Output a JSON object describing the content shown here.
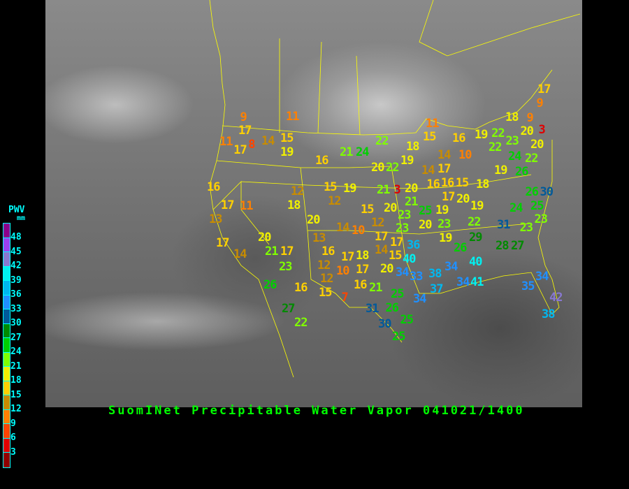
{
  "title": "SuomINet Precipitable Water Vapor 041021/1400",
  "legend": {
    "title": "PWV",
    "unit": "mm",
    "ticks": [
      "48",
      "45",
      "42",
      "39",
      "36",
      "33",
      "30",
      "27",
      "24",
      "21",
      "18",
      "15",
      "12",
      "9",
      "6",
      "3"
    ],
    "colors": [
      "#8b008b",
      "#9a40f0",
      "#8878d0",
      "#00f0f0",
      "#00b8f0",
      "#2090ff",
      "#005a9a",
      "#008a00",
      "#00d000",
      "#80ff00",
      "#f0f000",
      "#ffd000",
      "#c88c00",
      "#ff8000",
      "#ff4400",
      "#e00000",
      "#900000"
    ]
  },
  "stations": [
    "11",
    "9",
    "17",
    "11",
    "8",
    "17",
    "14",
    "15",
    "19",
    "16",
    "21",
    "24",
    "22",
    "18",
    "11",
    "15",
    "14",
    "16",
    "10",
    "19",
    "22",
    "18",
    "20",
    "9",
    "9",
    "17",
    "3",
    "22",
    "23",
    "20",
    "24",
    "22",
    "19",
    "26",
    "20",
    "22",
    "19",
    "14",
    "16",
    "16",
    "17",
    "21",
    "3",
    "20",
    "15",
    "17",
    "20",
    "18",
    "19",
    "16",
    "17",
    "11",
    "13",
    "12",
    "18",
    "15",
    "19",
    "12",
    "15",
    "20",
    "21",
    "25",
    "19",
    "20",
    "14",
    "10",
    "12",
    "23",
    "23",
    "20",
    "23",
    "22",
    "31",
    "26",
    "30",
    "24",
    "25",
    "23",
    "23",
    "17",
    "14",
    "20",
    "21",
    "17",
    "13",
    "17",
    "17",
    "14",
    "15",
    "18",
    "16",
    "17",
    "19",
    "26",
    "29",
    "28",
    "27",
    "36",
    "40",
    "20",
    "23",
    "12",
    "10",
    "17",
    "34",
    "33",
    "38",
    "34",
    "40",
    "26",
    "16",
    "12",
    "15",
    "16",
    "21",
    "7",
    "25",
    "34",
    "37",
    "34",
    "41",
    "35",
    "34",
    "42",
    "38",
    "27",
    "22",
    "31",
    "26",
    "30",
    "25",
    "25"
  ],
  "boundary_color": "#ffff00"
}
